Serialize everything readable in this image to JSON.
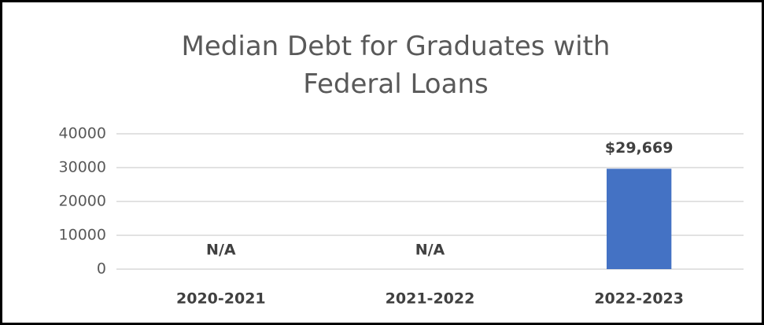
{
  "chart_data": {
    "type": "bar",
    "title": "Median Debt for Graduates with Federal Loans",
    "categories": [
      "2020-2021",
      "2021-2022",
      "2022-2023"
    ],
    "values": [
      null,
      null,
      29669
    ],
    "value_labels": [
      "N/A",
      "N/A",
      "$29,669"
    ],
    "color": "#4472c4",
    "ylim": [
      0,
      40000
    ],
    "yticks": [
      0,
      10000,
      20000,
      30000,
      40000
    ],
    "grid": true
  }
}
